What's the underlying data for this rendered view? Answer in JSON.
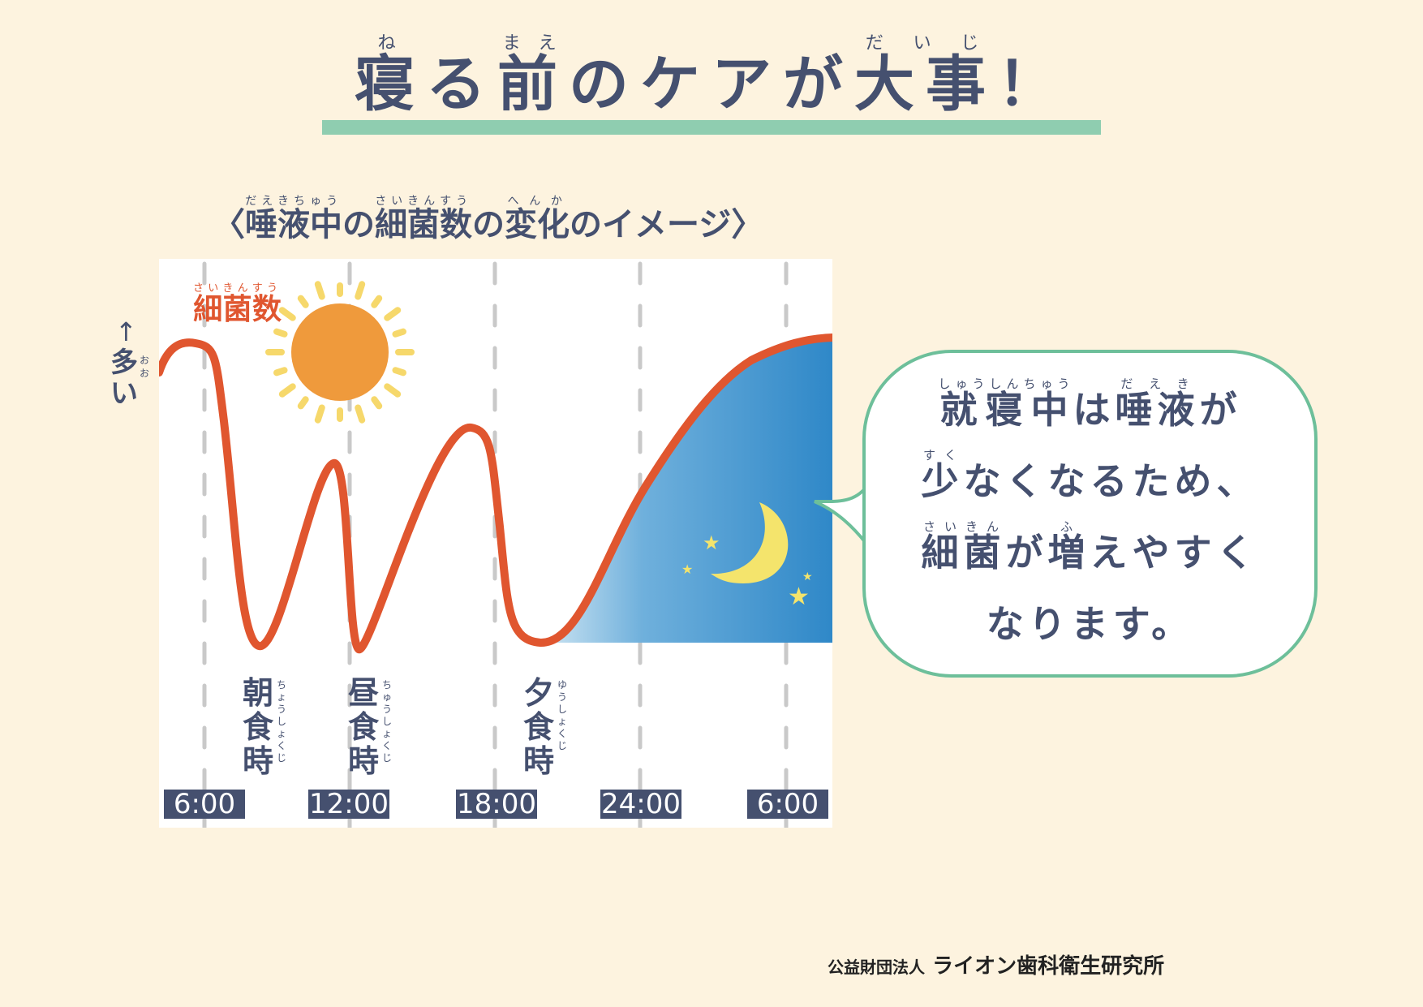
{
  "title": {
    "segments": [
      {
        "base": "寝",
        "ruby": "ね"
      },
      {
        "base": "る"
      },
      {
        "base": "前",
        "ruby": "まえ"
      },
      {
        "base": "のケアが"
      },
      {
        "base": "大事",
        "ruby": "だいじ"
      },
      {
        "base": "！"
      }
    ]
  },
  "subtitle": {
    "segments": [
      {
        "base": "〈"
      },
      {
        "base": "唾液中",
        "ruby": "だえきちゅう"
      },
      {
        "base": "の"
      },
      {
        "base": "細菌数",
        "ruby": "さいきんすう"
      },
      {
        "base": "の"
      },
      {
        "base": "変化",
        "ruby": "へんか"
      },
      {
        "base": "のイメージ〉"
      }
    ]
  },
  "chart": {
    "ylabel": {
      "base": "細菌数",
      "ruby": "さいきんすう"
    },
    "more_arrow": "↑",
    "more_label": "多い",
    "more_ruby": "おお",
    "meals": [
      {
        "label": "朝食時",
        "ruby": "ちょうしょくじ"
      },
      {
        "label": "昼食時",
        "ruby": "ちゅうしょくじ"
      },
      {
        "label": "夕食時",
        "ruby": "ゆうしょくじ"
      }
    ],
    "times": [
      "6:00",
      "12:00",
      "18:00",
      "24:00",
      "6:00"
    ],
    "colors": {
      "curve": "#e0562f",
      "night": "#2f88c8",
      "sun": "#ef9a3c",
      "rays": "#f6d86b",
      "moon": "#f4e46c",
      "grid": "#c9c9c9"
    }
  },
  "bubble": {
    "lines": [
      [
        {
          "base": "就寝中",
          "ruby": "しゅうしんちゅう"
        },
        {
          "base": "は"
        },
        {
          "base": "唾液",
          "ruby": "だえき"
        },
        {
          "base": "が"
        }
      ],
      [
        {
          "base": "少",
          "ruby": "すく"
        },
        {
          "base": "なくなるため、"
        }
      ],
      [
        {
          "base": "細菌",
          "ruby": "さいきん"
        },
        {
          "base": "が"
        },
        {
          "base": "増",
          "ruby": "ふ"
        },
        {
          "base": "えやすく"
        }
      ],
      [
        {
          "base": "なります。"
        }
      ]
    ]
  },
  "footer": {
    "org_prefix": "公益財団法人",
    "org_name": "ライオン歯科衛生研究所"
  },
  "colors": {
    "background": "#fdf3df",
    "text": "#45506f",
    "accent_green": "#8fcdb0",
    "bubble_border": "#6dbf9a"
  }
}
